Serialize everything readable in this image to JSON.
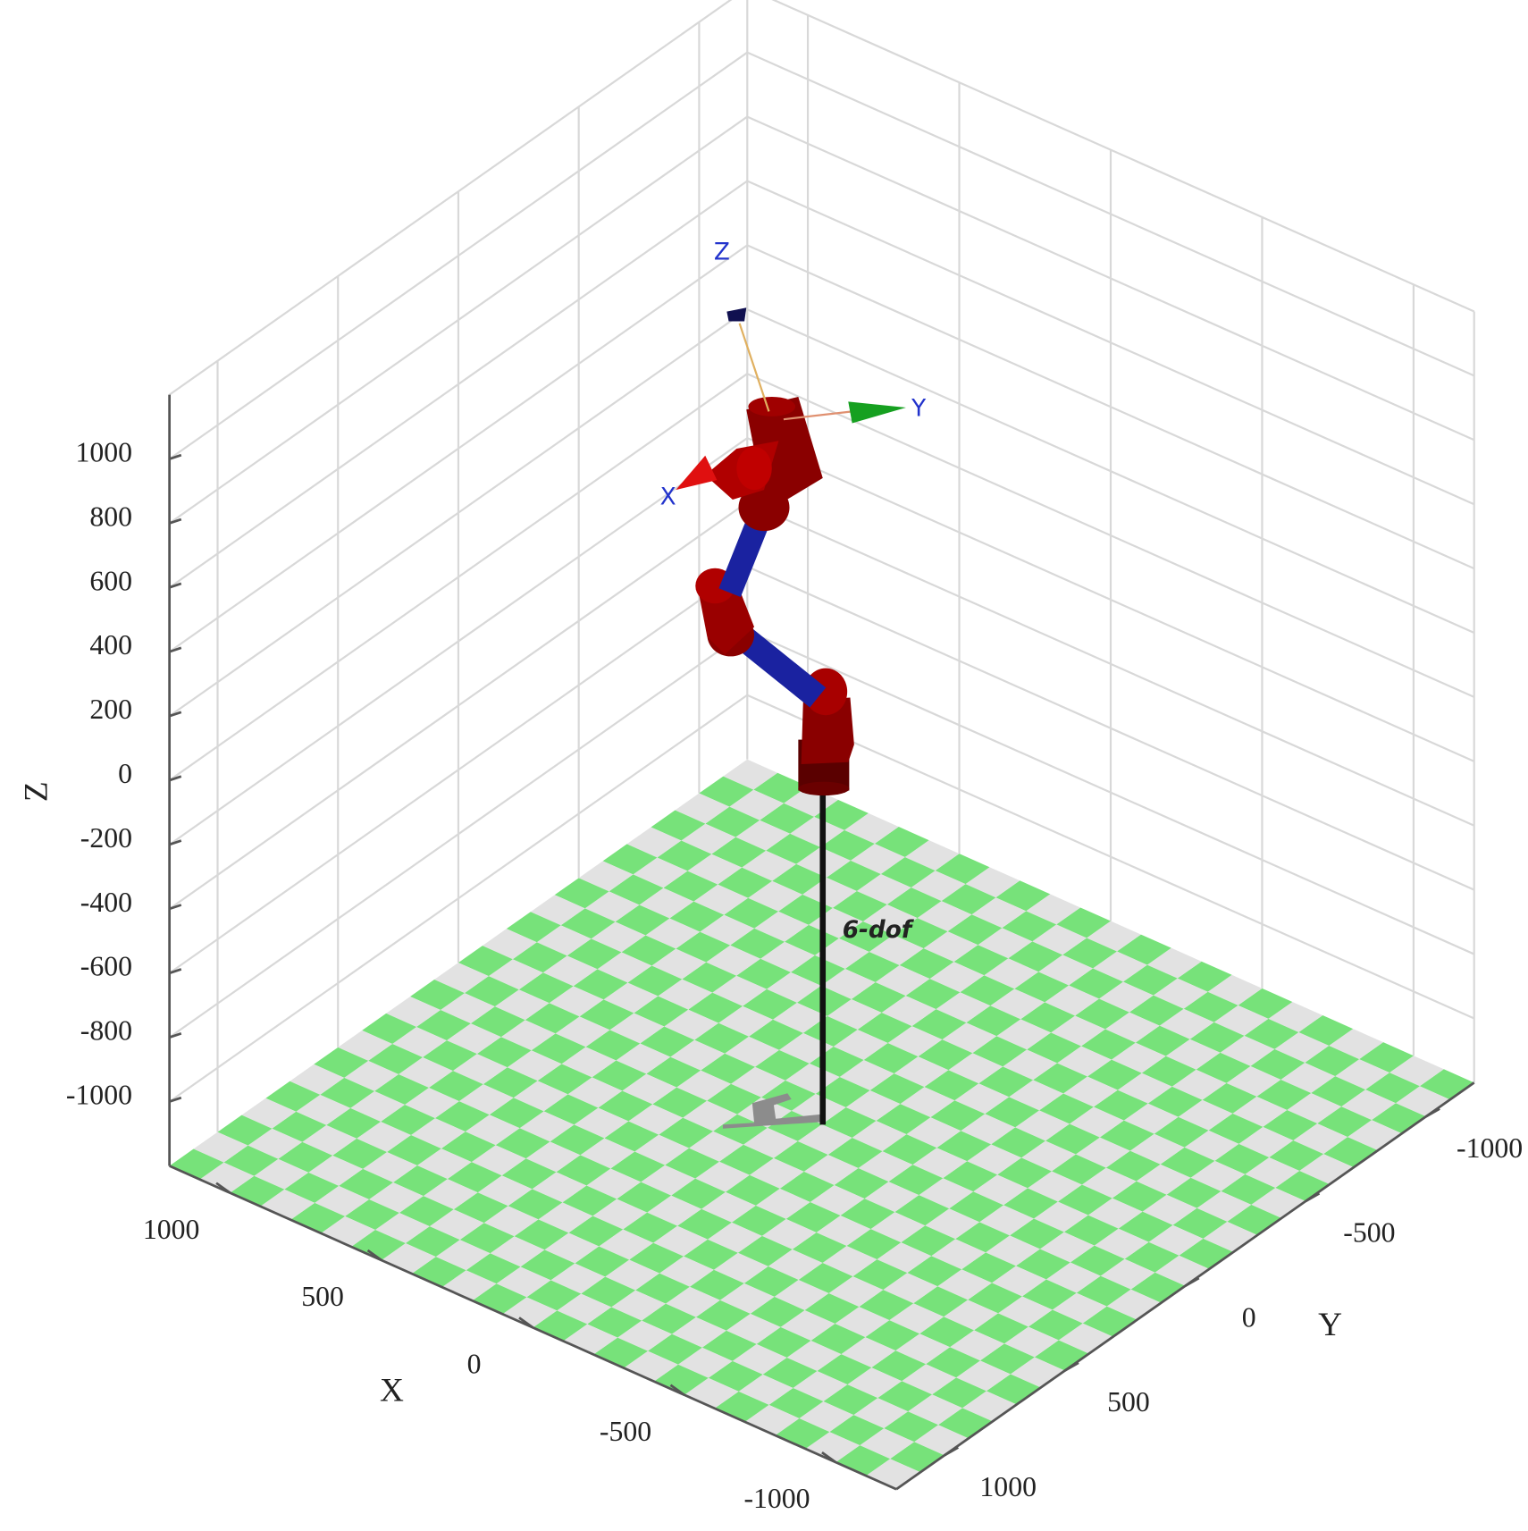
{
  "chart_data": {
    "type": "robot3d",
    "xlabel": "X",
    "ylabel": "Y",
    "zlabel": "Z",
    "xlim": [
      -1200,
      1200
    ],
    "ylim": [
      -1200,
      1200
    ],
    "zlim": [
      -1200,
      1200
    ],
    "xticks": [
      1000,
      500,
      0,
      -500,
      -1000
    ],
    "yticks": [
      -1000,
      -500,
      0,
      500,
      1000
    ],
    "zticks": [
      1000,
      800,
      600,
      400,
      200,
      0,
      -200,
      -400,
      -600,
      -800,
      -1000
    ],
    "grid": true,
    "floor_colors": [
      "#77e27a",
      "#e2e2e2"
    ],
    "robot": {
      "name": "6-dof",
      "frame_axes": [
        "X",
        "Y",
        "Z"
      ]
    }
  }
}
